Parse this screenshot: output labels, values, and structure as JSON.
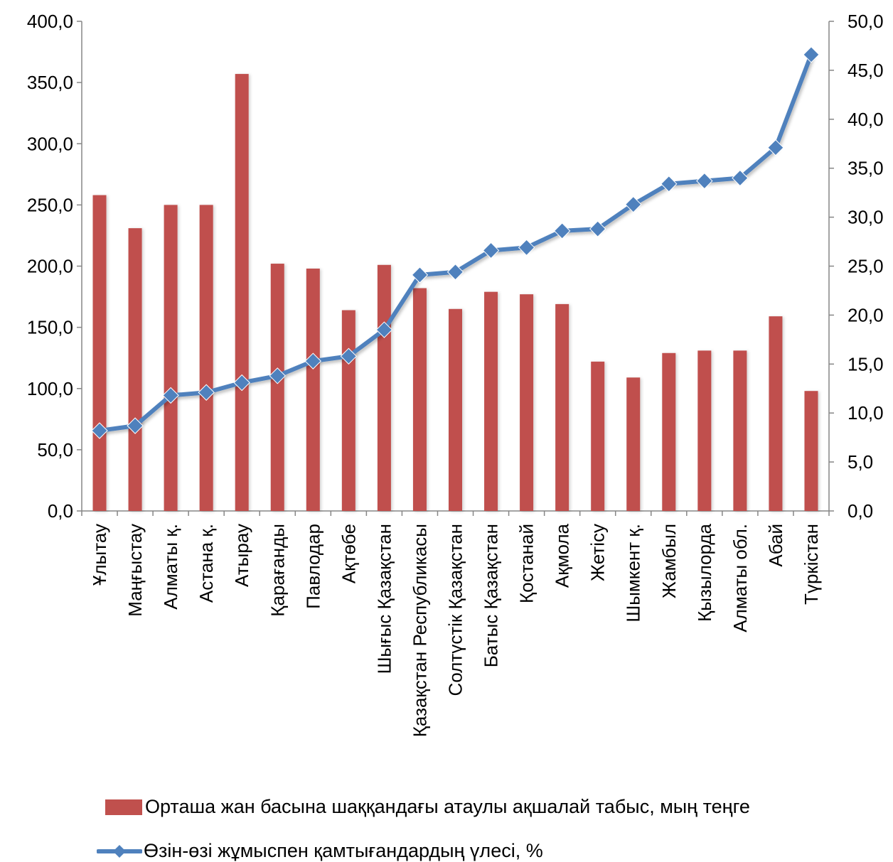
{
  "chart_data": {
    "type": "bar+line",
    "categories": [
      "Ұлытау",
      "Маңғыстау",
      "Алматы қ.",
      "Астана қ.",
      "Атырау",
      "Қарағанды",
      "Павлодар",
      "Ақтөбе",
      "Шығыс Қазақстан",
      "Қазақстан Республикасы",
      "Солтүстік Қазақстан",
      "Батыс Қазақстан",
      "Қостанай",
      "Ақмола",
      "Жетісу",
      "Шымкент қ.",
      "Жамбыл",
      "Қызылорда",
      "Алматы обл.",
      "Абай",
      "Түркістан"
    ],
    "series": [
      {
        "name": "Орташа жан басына шаққандағы атаулы ақшалай табыс, мың теңге",
        "type": "bar",
        "axis": "left",
        "color": "#C0504D",
        "values": [
          258,
          231,
          250,
          250,
          357,
          202,
          198,
          164,
          201,
          182,
          165,
          179,
          177,
          169,
          122,
          109,
          129,
          131,
          131,
          159,
          98
        ]
      },
      {
        "name": "Өзін-өзі жұмыспен қамтығандардың үлесі, %",
        "type": "line",
        "axis": "right",
        "color": "#4F81BD",
        "values": [
          8.2,
          8.7,
          11.8,
          12.1,
          13.1,
          13.8,
          15.3,
          15.8,
          18.5,
          24.1,
          24.4,
          26.6,
          26.9,
          28.6,
          28.8,
          31.3,
          33.4,
          33.7,
          34.0,
          37.1,
          46.6
        ]
      }
    ],
    "y_left": {
      "min": 0,
      "max": 400,
      "step": 50,
      "tick_labels": [
        "0,0",
        "50,0",
        "100,0",
        "150,0",
        "200,0",
        "250,0",
        "300,0",
        "350,0",
        "400,0"
      ]
    },
    "y_right": {
      "min": 0,
      "max": 50,
      "step": 5,
      "tick_labels": [
        "0,0",
        "5,0",
        "10,0",
        "15,0",
        "20,0",
        "25,0",
        "30,0",
        "35,0",
        "40,0",
        "45,0",
        "50,0"
      ]
    },
    "grid": false,
    "legend_position": "bottom"
  }
}
